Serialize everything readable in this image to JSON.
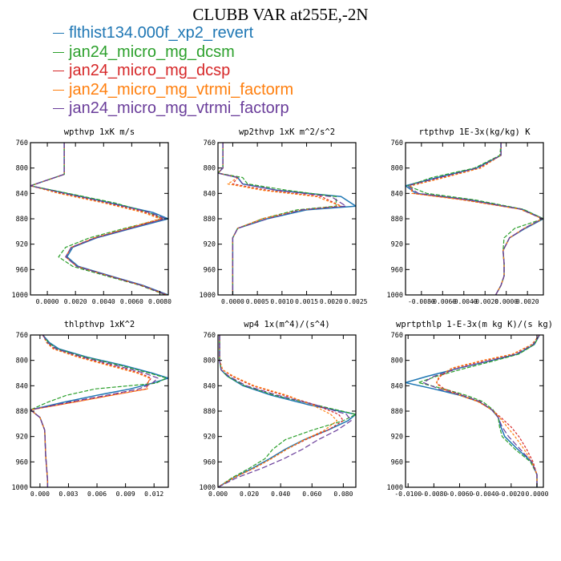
{
  "title": "CLUBB VAR at255E,-2N",
  "legend": [
    {
      "label": "flthist134.000f_xp2_revert",
      "color": "#1f77b4"
    },
    {
      "label": "jan24_micro_mg_dcsm",
      "color": "#2ca02c"
    },
    {
      "label": "jan24_micro_mg_dcsp",
      "color": "#d62728"
    },
    {
      "label": "jan24_micro_mg_vtrmi_factorm",
      "color": "#ff7f0e"
    },
    {
      "label": "jan24_micro_mg_vtrmi_factorp",
      "color": "#6a3d9a"
    }
  ],
  "chart_data": [
    {
      "type": "line",
      "title": "wpthvp  1xK m/s",
      "ylim": [
        760,
        1000
      ],
      "yreversed": true,
      "yticks": [
        760,
        800,
        840,
        880,
        920,
        960,
        1000
      ],
      "xlim": [
        -0.0012,
        0.0086
      ],
      "xticks": [
        0.0,
        0.002,
        0.004,
        0.006,
        0.008
      ],
      "xticklabels": [
        "0.0000",
        "0.0020",
        "0.0040",
        "0.0060",
        "0.0080"
      ],
      "levels": [
        760,
        790,
        810,
        828,
        840,
        855,
        870,
        880,
        895,
        910,
        925,
        940,
        955,
        970,
        985,
        1000
      ],
      "series": [
        {
          "values": [
            0.0012,
            0.0012,
            0.0012,
            -0.0012,
            0.0014,
            0.0045,
            0.0075,
            0.0086,
            0.006,
            0.0035,
            0.0018,
            0.0014,
            0.0022,
            0.0045,
            0.0068,
            0.0086
          ]
        },
        {
          "values": [
            0.0012,
            0.0012,
            0.0012,
            -0.0012,
            0.0015,
            0.0048,
            0.0072,
            0.0082,
            0.0055,
            0.003,
            0.0013,
            0.0008,
            0.0018,
            0.0042,
            0.0066,
            0.0084
          ]
        },
        {
          "values": [
            0.0012,
            0.0012,
            0.0012,
            -0.0012,
            0.001,
            0.0042,
            0.007,
            0.0082,
            0.0058,
            0.0034,
            0.0017,
            0.0013,
            0.0021,
            0.0044,
            0.0067,
            0.0085
          ]
        },
        {
          "values": [
            0.0012,
            0.0012,
            0.0012,
            -0.0012,
            0.0008,
            0.004,
            0.0068,
            0.008,
            0.0057,
            0.0033,
            0.0017,
            0.0013,
            0.0021,
            0.0044,
            0.0067,
            0.0085
          ]
        },
        {
          "values": [
            0.0012,
            0.0012,
            0.0012,
            -0.0012,
            0.0012,
            0.0044,
            0.0073,
            0.0084,
            0.0059,
            0.0034,
            0.0017,
            0.0013,
            0.0021,
            0.0044,
            0.0067,
            0.0085
          ]
        }
      ]
    },
    {
      "type": "line",
      "title": "wp2thvp  1xK m^2/s^2",
      "ylim": [
        760,
        1000
      ],
      "yreversed": true,
      "yticks": [
        760,
        800,
        840,
        880,
        920,
        960,
        1000
      ],
      "xlim": [
        -0.0003,
        0.0025
      ],
      "xticks": [
        0.0,
        0.0005,
        0.001,
        0.0015,
        0.002,
        0.0025
      ],
      "xticklabels": [
        "0.0000",
        "0.0005",
        "0.0010",
        "0.0015",
        "0.0020",
        "0.0025"
      ],
      "levels": [
        760,
        800,
        808,
        815,
        825,
        835,
        845,
        860,
        866,
        880,
        895,
        910,
        930,
        960,
        1000
      ],
      "series": [
        {
          "values": [
            -0.0002,
            -0.0002,
            -0.0003,
            0.0001,
            0.0002,
            0.0009,
            0.0022,
            0.0025,
            0.0015,
            0.0007,
            0.0001,
            0.0,
            0.0,
            0.0,
            0.0
          ]
        },
        {
          "values": [
            -0.0002,
            -0.0002,
            -0.0003,
            0.0002,
            0.0003,
            0.0011,
            0.0021,
            0.0021,
            0.0013,
            0.0006,
            0.0001,
            0.0,
            0.0,
            0.0,
            0.0
          ]
        },
        {
          "values": [
            -0.0002,
            -0.0002,
            -0.0003,
            0.0001,
            0.0,
            0.0007,
            0.0018,
            0.0022,
            0.0014,
            0.0006,
            0.0001,
            0.0,
            0.0,
            0.0,
            0.0
          ]
        },
        {
          "values": [
            -0.0002,
            -0.0002,
            -0.0003,
            0.0001,
            -0.0001,
            0.0006,
            0.0017,
            0.0022,
            0.0014,
            0.0006,
            0.0001,
            0.0,
            0.0,
            0.0,
            0.0
          ]
        },
        {
          "values": [
            -0.0002,
            -0.0002,
            -0.0003,
            0.0001,
            0.0002,
            0.0009,
            0.002,
            0.0023,
            0.0014,
            0.0007,
            0.0001,
            0.0,
            0.0,
            0.0,
            0.0
          ]
        }
      ]
    },
    {
      "type": "line",
      "title": "rtpthvp  1E-3x(kg/kg) K",
      "ylim": [
        760,
        1000
      ],
      "yreversed": true,
      "yticks": [
        760,
        800,
        840,
        880,
        920,
        960,
        1000
      ],
      "xlim": [
        -0.0095,
        0.0035
      ],
      "xticks": [
        -0.008,
        -0.006,
        -0.004,
        -0.002,
        0.0,
        0.002
      ],
      "xticklabels": [
        "-0.0080",
        "-0.0060",
        "-0.0040",
        "-0.0020",
        "0.0000",
        "0.0020"
      ],
      "levels": [
        760,
        780,
        800,
        815,
        828,
        840,
        850,
        865,
        880,
        895,
        910,
        930,
        950,
        970,
        985,
        1000
      ],
      "series": [
        {
          "values": [
            -0.0005,
            -0.0005,
            -0.0028,
            -0.0065,
            -0.0095,
            -0.0085,
            -0.0035,
            0.0015,
            0.0035,
            0.0018,
            0.0003,
            -0.0003,
            -0.0002,
            -0.0002,
            -0.0005,
            -0.001
          ]
        },
        {
          "values": [
            -0.0005,
            -0.0006,
            -0.003,
            -0.007,
            -0.0093,
            -0.0075,
            -0.003,
            0.0016,
            0.0035,
            0.0008,
            -0.0002,
            -0.0003,
            -0.0002,
            -0.0002,
            -0.0005,
            -0.001
          ]
        },
        {
          "values": [
            -0.0005,
            -0.0005,
            -0.0025,
            -0.006,
            -0.009,
            -0.0088,
            -0.004,
            0.0014,
            0.0034,
            0.0017,
            0.0003,
            -0.0003,
            -0.0002,
            -0.0002,
            -0.0005,
            -0.001
          ]
        },
        {
          "values": [
            -0.0005,
            -0.0005,
            -0.0024,
            -0.0058,
            -0.009,
            -0.0089,
            -0.0042,
            0.0013,
            0.0034,
            0.0017,
            0.0003,
            -0.0003,
            -0.0002,
            -0.0002,
            -0.0005,
            -0.001
          ]
        },
        {
          "values": [
            -0.0005,
            -0.0005,
            -0.0027,
            -0.0063,
            -0.0093,
            -0.0083,
            -0.0036,
            0.0014,
            0.0034,
            0.0017,
            0.0003,
            -0.0003,
            -0.0002,
            -0.0002,
            -0.0005,
            -0.001
          ]
        }
      ]
    },
    {
      "type": "line",
      "title": "thlpthvp  1xK^2",
      "ylim": [
        760,
        1000
      ],
      "yreversed": true,
      "yticks": [
        760,
        800,
        840,
        880,
        920,
        960,
        1000
      ],
      "xlim": [
        -0.001,
        0.0135
      ],
      "xticks": [
        0.0,
        0.003,
        0.006,
        0.009,
        0.012
      ],
      "xticklabels": [
        "0.000",
        "0.003",
        "0.006",
        "0.009",
        "0.012"
      ],
      "levels": [
        760,
        772,
        782,
        795,
        808,
        820,
        828,
        836,
        845,
        855,
        866,
        878,
        890,
        910,
        950,
        990,
        1000
      ],
      "series": [
        {
          "values": [
            0.0003,
            0.001,
            0.002,
            0.005,
            0.0088,
            0.0118,
            0.0135,
            0.0118,
            0.0095,
            0.006,
            0.0025,
            -0.001,
            0.0,
            0.0005,
            0.0006,
            0.0008,
            0.0008
          ]
        },
        {
          "values": [
            0.0003,
            0.0009,
            0.0018,
            0.0048,
            0.0085,
            0.0115,
            0.0133,
            0.0122,
            0.0058,
            0.0028,
            0.0008,
            -0.001,
            0.0,
            0.0005,
            0.0006,
            0.0008,
            0.0008
          ]
        },
        {
          "values": [
            0.0003,
            0.0007,
            0.0015,
            0.0042,
            0.0075,
            0.0105,
            0.0117,
            0.0113,
            0.0112,
            0.0075,
            0.0035,
            -0.001,
            0.0,
            0.0005,
            0.0006,
            0.0008,
            0.0008
          ]
        },
        {
          "values": [
            0.0003,
            0.0007,
            0.0014,
            0.004,
            0.0072,
            0.0102,
            0.0115,
            0.0114,
            0.0113,
            0.0076,
            0.0036,
            -0.001,
            0.0,
            0.0005,
            0.0006,
            0.0008,
            0.0008
          ]
        },
        {
          "values": [
            0.0003,
            0.0008,
            0.0017,
            0.0045,
            0.008,
            0.011,
            0.0124,
            0.0118,
            0.0104,
            0.007,
            0.003,
            -0.001,
            0.0,
            0.0005,
            0.0006,
            0.0008,
            0.0008
          ]
        }
      ]
    },
    {
      "type": "line",
      "title": "wp4  1x(m^4)/(s^4)",
      "ylim": [
        760,
        1000
      ],
      "yreversed": true,
      "yticks": [
        760,
        800,
        840,
        880,
        920,
        960,
        1000
      ],
      "xlim": [
        0.0,
        0.088
      ],
      "xticks": [
        0.0,
        0.02,
        0.04,
        0.06,
        0.08
      ],
      "xticklabels": [
        "0.000",
        "0.020",
        "0.040",
        "0.060",
        "0.080"
      ],
      "levels": [
        760,
        800,
        815,
        825,
        840,
        855,
        870,
        885,
        895,
        910,
        925,
        940,
        955,
        970,
        985,
        1000
      ],
      "series": [
        {
          "values": [
            0.001,
            0.001,
            0.002,
            0.006,
            0.016,
            0.034,
            0.058,
            0.088,
            0.083,
            0.07,
            0.055,
            0.043,
            0.033,
            0.022,
            0.01,
            0.0
          ]
        },
        {
          "values": [
            0.001,
            0.001,
            0.002,
            0.006,
            0.017,
            0.036,
            0.062,
            0.088,
            0.08,
            0.06,
            0.043,
            0.035,
            0.03,
            0.02,
            0.009,
            0.0
          ]
        },
        {
          "values": [
            0.001,
            0.001,
            0.003,
            0.009,
            0.022,
            0.042,
            0.062,
            0.077,
            0.08,
            0.07,
            0.056,
            0.044,
            0.034,
            0.023,
            0.01,
            0.0
          ]
        },
        {
          "values": [
            0.001,
            0.001,
            0.003,
            0.01,
            0.023,
            0.044,
            0.06,
            0.072,
            0.076,
            0.068,
            0.055,
            0.044,
            0.034,
            0.023,
            0.01,
            0.0
          ]
        },
        {
          "values": [
            0.001,
            0.001,
            0.002,
            0.007,
            0.018,
            0.038,
            0.062,
            0.082,
            0.085,
            0.076,
            0.064,
            0.054,
            0.042,
            0.028,
            0.012,
            0.0
          ]
        }
      ]
    },
    {
      "type": "line",
      "title": "wprtpthlp  1-E-3x(m kg K)/(s kg)",
      "ylim": [
        760,
        1000
      ],
      "yreversed": true,
      "yticks": [
        760,
        800,
        840,
        880,
        920,
        960,
        1000
      ],
      "xlim": [
        -0.0102,
        0.0005
      ],
      "xticks": [
        -0.01,
        -0.008,
        -0.006,
        -0.004,
        -0.002,
        0.0
      ],
      "xticklabels": [
        "-0.0100",
        "-0.0080",
        "-0.0060",
        "-0.0040",
        "-0.0020",
        "0.0000"
      ],
      "levels": [
        760,
        775,
        790,
        800,
        812,
        825,
        835,
        845,
        855,
        865,
        878,
        890,
        905,
        920,
        940,
        960,
        980,
        1000
      ],
      "series": [
        {
          "values": [
            0.0002,
            -0.0002,
            -0.0015,
            -0.0035,
            -0.006,
            -0.0085,
            -0.0102,
            -0.008,
            -0.006,
            -0.0045,
            -0.0035,
            -0.003,
            -0.0028,
            -0.0025,
            -0.0015,
            -0.0004,
            0.0,
            0.0
          ]
        },
        {
          "values": [
            0.0002,
            -0.0002,
            -0.0014,
            -0.0032,
            -0.0055,
            -0.0078,
            -0.0092,
            -0.0072,
            -0.0055,
            -0.0042,
            -0.0034,
            -0.003,
            -0.0029,
            -0.0027,
            -0.0017,
            -0.0005,
            0.0,
            0.0
          ]
        },
        {
          "values": [
            0.0002,
            -0.0004,
            -0.0018,
            -0.004,
            -0.0064,
            -0.0075,
            -0.0078,
            -0.0072,
            -0.0058,
            -0.0045,
            -0.0035,
            -0.0028,
            -0.002,
            -0.0014,
            -0.0008,
            -0.0003,
            0.0,
            0.0
          ]
        },
        {
          "values": [
            0.0002,
            -0.0004,
            -0.0019,
            -0.0042,
            -0.0066,
            -0.0076,
            -0.0078,
            -0.0074,
            -0.006,
            -0.0046,
            -0.0035,
            -0.0029,
            -0.0023,
            -0.0017,
            -0.001,
            -0.0004,
            0.0,
            0.0
          ]
        },
        {
          "values": [
            0.0002,
            -0.0003,
            -0.0016,
            -0.0036,
            -0.006,
            -0.008,
            -0.0088,
            -0.0076,
            -0.0058,
            -0.0044,
            -0.0035,
            -0.003,
            -0.0027,
            -0.0022,
            -0.0013,
            -0.0004,
            0.0,
            0.0
          ]
        }
      ]
    }
  ]
}
